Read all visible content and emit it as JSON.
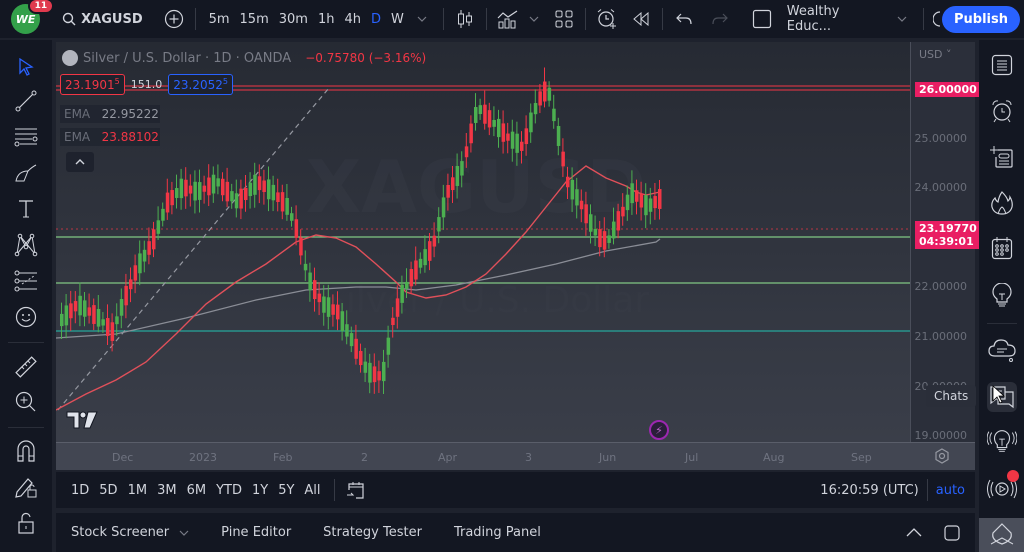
{
  "topbar": {
    "notification_count": "11",
    "symbol": "XAGUSD",
    "timeframes": [
      "5m",
      "15m",
      "30m",
      "1h",
      "4h",
      "D",
      "W"
    ],
    "active_timeframe": "D",
    "layout_name": "Wealthy Educ...",
    "publish_label": "Publish",
    "icons": [
      "add-symbol-icon",
      "candles-chart-type-icon",
      "indicators-icon",
      "layouts-icon",
      "alert-icon",
      "replay-icon",
      "undo-icon",
      "redo-icon",
      "fullscreen-icon",
      "theme-toggle-icon"
    ]
  },
  "legend": {
    "title": "Silver / U.S. Dollar · 1D · OANDA",
    "change": "−0.75780 (−3.16%)",
    "bid": "23.1901",
    "bid_sup": "5",
    "spread": "151.0",
    "ask": "23.2052",
    "ask_sup": "5",
    "ema1_label": "EMA",
    "ema1_value": "22.95222",
    "ema2_label": "EMA",
    "ema2_value": "23.88102"
  },
  "price_axis": {
    "currency": "USD",
    "ticks": [
      "26.00000",
      "25.00000",
      "24.00000",
      "22.00000",
      "21.00000",
      "20.00000",
      "19.00000"
    ],
    "label_top": "26.00000",
    "last_price": "23.19770",
    "countdown": "04:39:01"
  },
  "time_axis": {
    "ticks": [
      "Dec",
      "2023",
      "Feb",
      "2",
      "Apr",
      "3",
      "Jun",
      "Jul",
      "Aug",
      "Sep"
    ]
  },
  "rangebar": {
    "ranges": [
      "1D",
      "5D",
      "1M",
      "3M",
      "6M",
      "YTD",
      "1Y",
      "5Y",
      "All"
    ],
    "clock": "16:20:59 (UTC)",
    "scale_mode": "auto"
  },
  "bottombar": {
    "tabs": [
      "Stock Screener",
      "Pine Editor",
      "Strategy Tester",
      "Trading Panel"
    ]
  },
  "right_toolbar": {
    "tooltip": "Chats",
    "icons": [
      "watchlist-icon",
      "alerts-icon",
      "ideas-add-icon",
      "hotlists-icon",
      "calendar-icon",
      "ideas-icon",
      "minds-icon",
      "chats-icon",
      "tips-icon",
      "streams-icon",
      "help-icon"
    ]
  },
  "left_toolbar": {
    "icons": [
      "cursor-icon",
      "trendline-icon",
      "fib-icon",
      "brush-icon",
      "text-icon",
      "pattern-icon",
      "prediction-icon",
      "emoji-icon",
      "ruler-icon",
      "zoom-in-icon",
      "magnet-icon",
      "lock-drawings-icon",
      "lock-icon"
    ]
  },
  "colors": {
    "accent": "#2962ff",
    "up": "#4caf50",
    "down": "#f23645",
    "price_label": "#e91e63",
    "ema_fast": "#e0505a",
    "ema_slow": "#8a8d96"
  }
}
